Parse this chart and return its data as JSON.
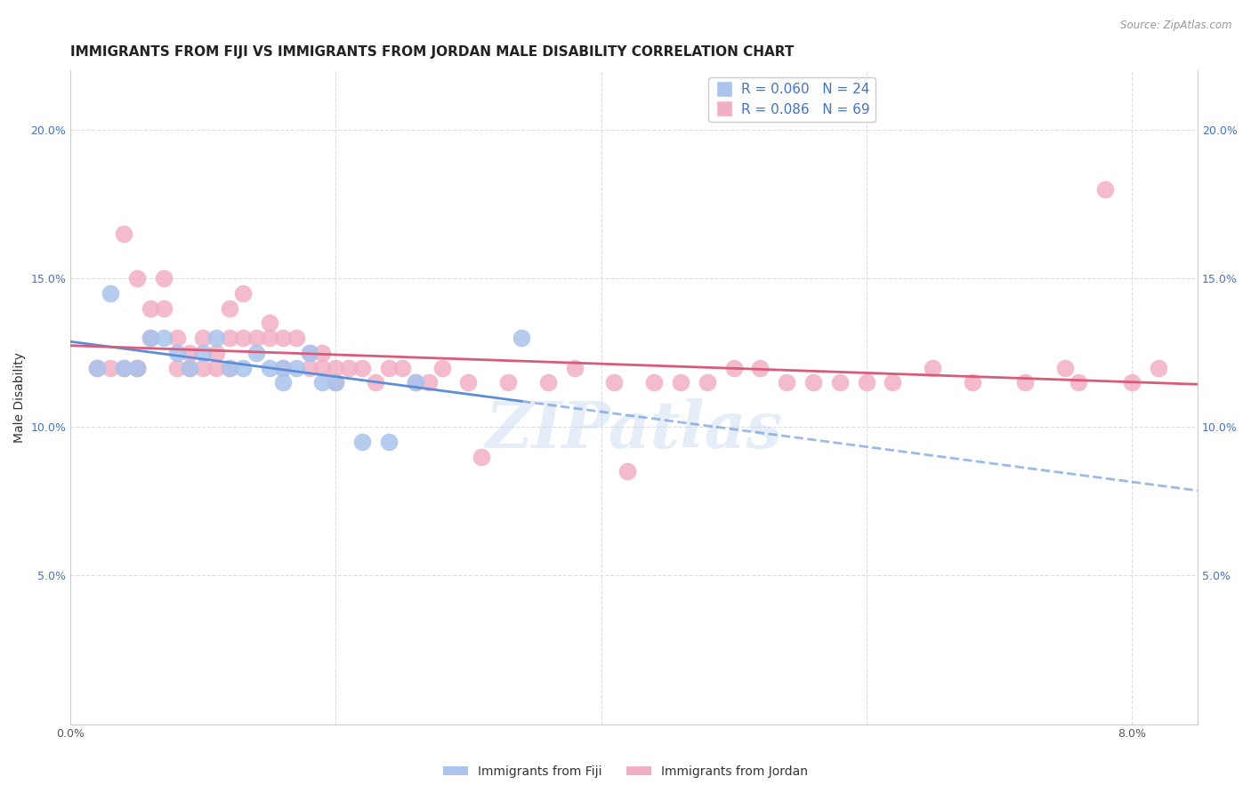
{
  "title": "IMMIGRANTS FROM FIJI VS IMMIGRANTS FROM JORDAN MALE DISABILITY CORRELATION CHART",
  "source": "Source: ZipAtlas.com",
  "ylabel": "Male Disability",
  "ylim": [
    0.0,
    0.22
  ],
  "xlim": [
    0.0,
    0.085
  ],
  "x_ticks": [
    0.0,
    0.02,
    0.04,
    0.06,
    0.08
  ],
  "x_tick_labels": [
    "0.0%",
    "",
    "",
    "",
    "8.0%"
  ],
  "y_ticks": [
    0.0,
    0.05,
    0.1,
    0.15,
    0.2
  ],
  "y_tick_labels_left": [
    "",
    "5.0%",
    "10.0%",
    "15.0%",
    "20.0%"
  ],
  "y_tick_labels_right": [
    "",
    "5.0%",
    "10.0%",
    "15.0%",
    "20.0%"
  ],
  "legend_fiji_r": "R = 0.060",
  "legend_fiji_n": "N = 24",
  "legend_jordan_r": "R = 0.086",
  "legend_jordan_n": "N = 69",
  "fiji_color": "#aac4ed",
  "fiji_line_color": "#5b8dd9",
  "jordan_color": "#f2afc4",
  "jordan_line_color": "#d95b7a",
  "fiji_scatter_x": [
    0.002,
    0.003,
    0.004,
    0.005,
    0.006,
    0.007,
    0.008,
    0.009,
    0.01,
    0.011,
    0.012,
    0.013,
    0.014,
    0.015,
    0.016,
    0.016,
    0.017,
    0.018,
    0.019,
    0.02,
    0.022,
    0.024,
    0.026,
    0.034
  ],
  "fiji_scatter_y": [
    0.12,
    0.145,
    0.12,
    0.12,
    0.13,
    0.13,
    0.125,
    0.12,
    0.125,
    0.13,
    0.12,
    0.12,
    0.125,
    0.12,
    0.115,
    0.12,
    0.12,
    0.125,
    0.115,
    0.115,
    0.095,
    0.095,
    0.115,
    0.13
  ],
  "jordan_scatter_x": [
    0.002,
    0.003,
    0.004,
    0.004,
    0.005,
    0.005,
    0.005,
    0.006,
    0.006,
    0.007,
    0.007,
    0.008,
    0.008,
    0.009,
    0.009,
    0.01,
    0.01,
    0.011,
    0.011,
    0.012,
    0.012,
    0.012,
    0.013,
    0.013,
    0.014,
    0.015,
    0.015,
    0.016,
    0.016,
    0.017,
    0.018,
    0.018,
    0.019,
    0.019,
    0.02,
    0.02,
    0.021,
    0.022,
    0.023,
    0.024,
    0.025,
    0.026,
    0.027,
    0.028,
    0.03,
    0.031,
    0.033,
    0.036,
    0.038,
    0.041,
    0.042,
    0.044,
    0.046,
    0.048,
    0.05,
    0.052,
    0.054,
    0.056,
    0.058,
    0.06,
    0.062,
    0.065,
    0.068,
    0.072,
    0.075,
    0.076,
    0.078,
    0.08,
    0.082
  ],
  "jordan_scatter_y": [
    0.12,
    0.12,
    0.165,
    0.12,
    0.15,
    0.12,
    0.12,
    0.14,
    0.13,
    0.15,
    0.14,
    0.13,
    0.12,
    0.125,
    0.12,
    0.13,
    0.12,
    0.125,
    0.12,
    0.14,
    0.13,
    0.12,
    0.145,
    0.13,
    0.13,
    0.135,
    0.13,
    0.13,
    0.12,
    0.13,
    0.125,
    0.12,
    0.125,
    0.12,
    0.12,
    0.115,
    0.12,
    0.12,
    0.115,
    0.12,
    0.12,
    0.115,
    0.115,
    0.12,
    0.115,
    0.09,
    0.115,
    0.115,
    0.12,
    0.115,
    0.085,
    0.115,
    0.115,
    0.115,
    0.12,
    0.12,
    0.115,
    0.115,
    0.115,
    0.115,
    0.115,
    0.12,
    0.115,
    0.115,
    0.12,
    0.115,
    0.18,
    0.115,
    0.12
  ],
  "watermark_text": "ZIPatlas",
  "background_color": "#ffffff",
  "grid_color": "#dddddd",
  "title_fontsize": 11,
  "axis_label_fontsize": 10,
  "tick_fontsize": 9,
  "legend_fontsize": 11,
  "fiji_line_x_solid_end": 0.034,
  "fiji_line_x_dashed_start": 0.034,
  "fiji_line_x_end": 0.085
}
